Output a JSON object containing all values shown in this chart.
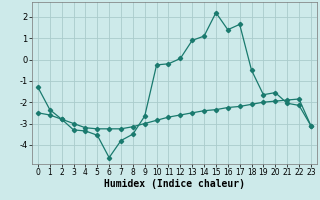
{
  "xlabel": "Humidex (Indice chaleur)",
  "background_color": "#cdeaea",
  "grid_color": "#aacccc",
  "line_color": "#1a7a6e",
  "x": [
    0,
    1,
    2,
    3,
    4,
    5,
    6,
    7,
    8,
    9,
    10,
    11,
    12,
    13,
    14,
    15,
    16,
    17,
    18,
    19,
    20,
    21,
    22,
    23
  ],
  "line_main": [
    -1.3,
    -2.35,
    -2.8,
    -3.3,
    -3.35,
    -3.55,
    -4.6,
    -3.8,
    -3.5,
    -2.65,
    -0.25,
    -0.2,
    0.05,
    0.9,
    1.1,
    2.2,
    1.4,
    1.65,
    -0.5,
    -1.65,
    -1.55,
    -2.05,
    -2.15,
    -3.1
  ],
  "line_flat": [
    -2.5,
    -2.6,
    -2.8,
    -3.0,
    -3.2,
    -3.25,
    -3.25,
    -3.25,
    -3.15,
    -3.0,
    -2.85,
    -2.7,
    -2.6,
    -2.5,
    -2.4,
    -2.35,
    -2.25,
    -2.2,
    -2.1,
    -2.0,
    -1.95,
    -1.9,
    -1.85,
    -3.1
  ],
  "ylim": [
    -4.9,
    2.7
  ],
  "yticks": [
    -4,
    -3,
    -2,
    -1,
    0,
    1,
    2
  ],
  "xlim": [
    -0.5,
    23.5
  ],
  "xticks": [
    0,
    1,
    2,
    3,
    4,
    5,
    6,
    7,
    8,
    9,
    10,
    11,
    12,
    13,
    14,
    15,
    16,
    17,
    18,
    19,
    20,
    21,
    22,
    23
  ],
  "xlabel_fontsize": 7,
  "tick_fontsize": 5.5,
  "line_width": 0.9,
  "marker_size": 2.2
}
